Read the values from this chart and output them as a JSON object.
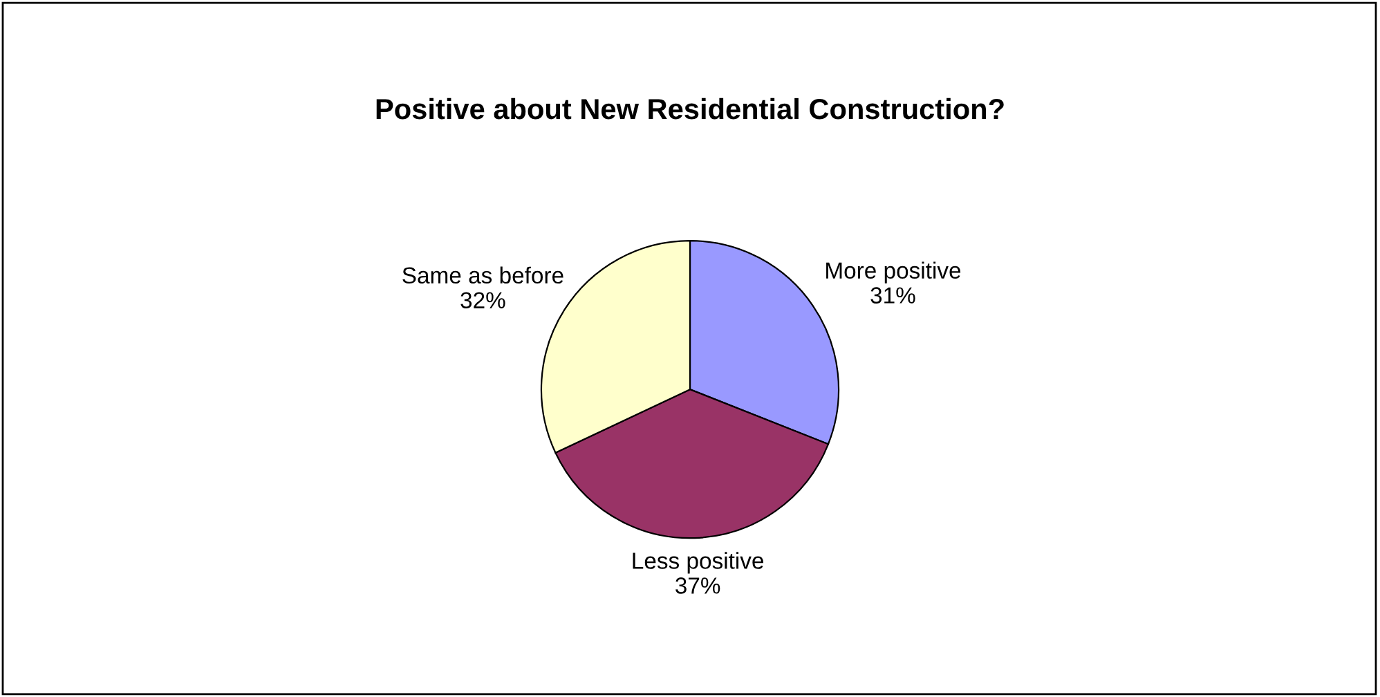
{
  "chart_data": {
    "type": "pie",
    "title": "Positive about New Residential Construction?",
    "categories": [
      "More positive",
      "Less positive",
      "Same as before"
    ],
    "values": [
      31,
      37,
      32
    ],
    "value_labels": [
      "31%",
      "37%",
      "32%"
    ],
    "colors": [
      "#9999ff",
      "#993366",
      "#ffffcc"
    ],
    "legend": false
  }
}
